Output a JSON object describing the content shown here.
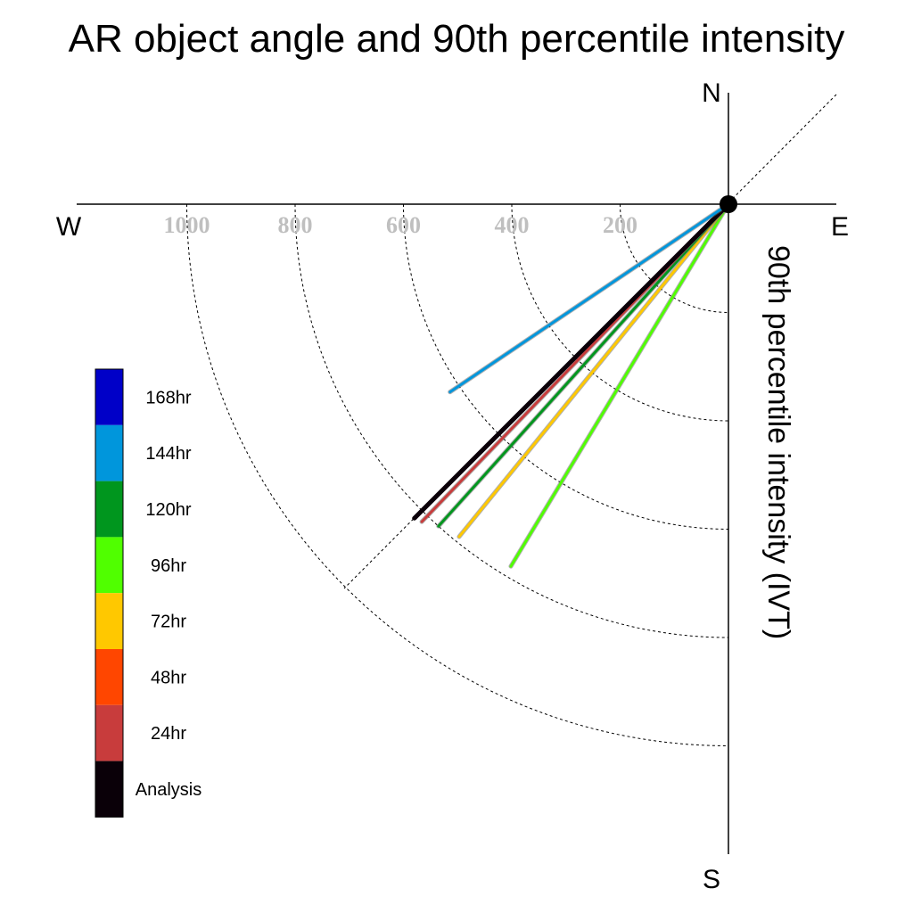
{
  "chart_data": {
    "type": "polar-vector",
    "title": "AR object angle and 90th percentile intensity",
    "ylabel": "90th percentile intensity (IVT)",
    "compass": {
      "north": "N",
      "south": "S",
      "east": "E",
      "west": "W"
    },
    "radial_ticks": [
      "200",
      "400",
      "600",
      "800",
      "1000"
    ],
    "radial_tick_values": [
      200,
      400,
      600,
      800,
      1000
    ],
    "rlim": [
      0,
      1200
    ],
    "grid": true,
    "legend_position": "left",
    "legend": [
      {
        "label": "168hr",
        "color": "#0000c8"
      },
      {
        "label": "144hr",
        "color": "#0096dc"
      },
      {
        "label": "120hr",
        "color": "#00961e"
      },
      {
        "label": "96hr",
        "color": "#50ff00"
      },
      {
        "label": "72hr",
        "color": "#ffc800"
      },
      {
        "label": "48hr",
        "color": "#ff4600"
      },
      {
        "label": "24hr",
        "color": "#c83c3c"
      },
      {
        "label": "Analysis",
        "color": "#0a0008"
      }
    ],
    "series": [
      {
        "name": "96hr",
        "color": "#50ff00",
        "angle_deg": 211,
        "magnitude": 780
      },
      {
        "name": "72hr",
        "color": "#ffc800",
        "angle_deg": 219,
        "magnitude": 790
      },
      {
        "name": "120hr",
        "color": "#00961e",
        "angle_deg": 222,
        "magnitude": 800
      },
      {
        "name": "24hr",
        "color": "#c83c3c",
        "angle_deg": 224,
        "magnitude": 815
      },
      {
        "name": "Analysis",
        "color": "#0a0008",
        "angle_deg": 225,
        "magnitude": 820
      },
      {
        "name": "144hr",
        "color": "#0096dc",
        "angle_deg": 236,
        "magnitude": 620
      }
    ]
  }
}
